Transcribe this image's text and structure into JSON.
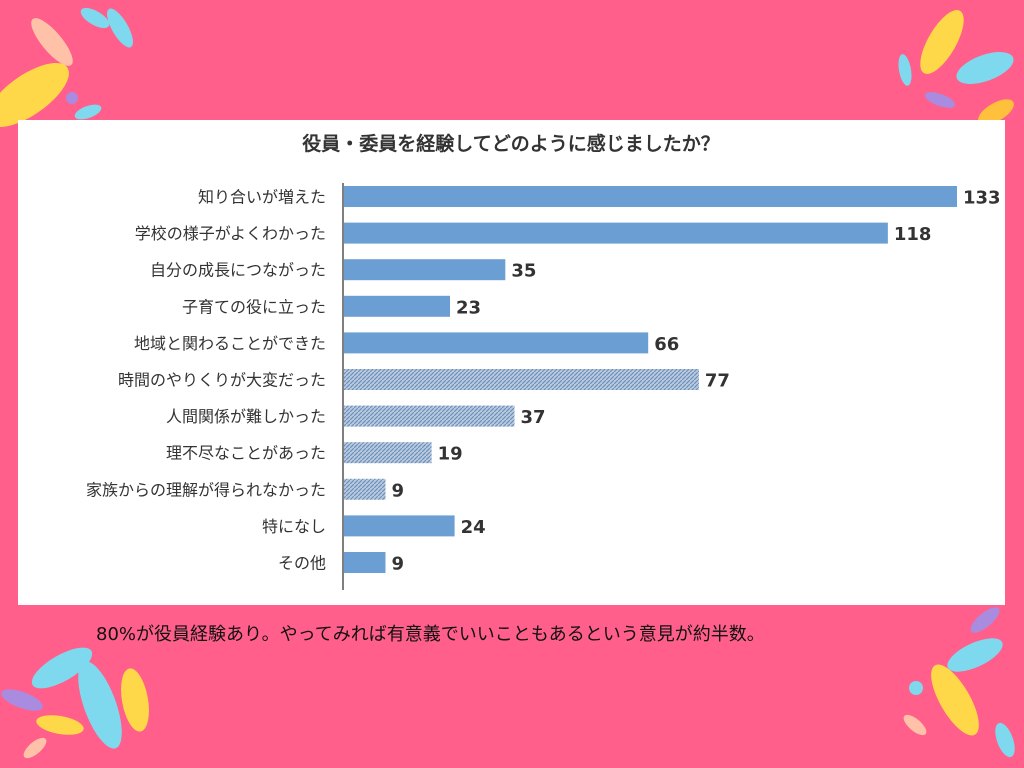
{
  "caption": "80%が役員経験あり。やってみれば有意義でいいこともあるという意見が約半数。",
  "colors": {
    "background": "#ff5f8a",
    "bar_solid": "#6b9fd4",
    "bar_hatched": "#8aa6c8",
    "decor": [
      "#ffd84a",
      "#7fd9ee",
      "#a98be0",
      "#ffc13b"
    ]
  },
  "chart_data": {
    "type": "bar",
    "orientation": "horizontal",
    "title": "役員・委員を経験してどのように感じましたか？",
    "categories": [
      "知り合いが増えた",
      "学校の様子がよくわかった",
      "自分の成長につながった",
      "子育ての役に立った",
      "地域と関わることができた",
      "時間のやりくりが大変だった",
      "人間関係が難しかった",
      "理不尽なことがあった",
      "家族からの理解が得られなかった",
      "特になし",
      "その他"
    ],
    "values": [
      133,
      118,
      35,
      23,
      66,
      77,
      37,
      19,
      9,
      24,
      9
    ],
    "bar_style": [
      "solid",
      "solid",
      "solid",
      "solid",
      "solid",
      "hatched",
      "hatched",
      "hatched",
      "hatched",
      "solid",
      "solid"
    ],
    "xlim": [
      0,
      133
    ],
    "grid": false,
    "legend": "none"
  }
}
